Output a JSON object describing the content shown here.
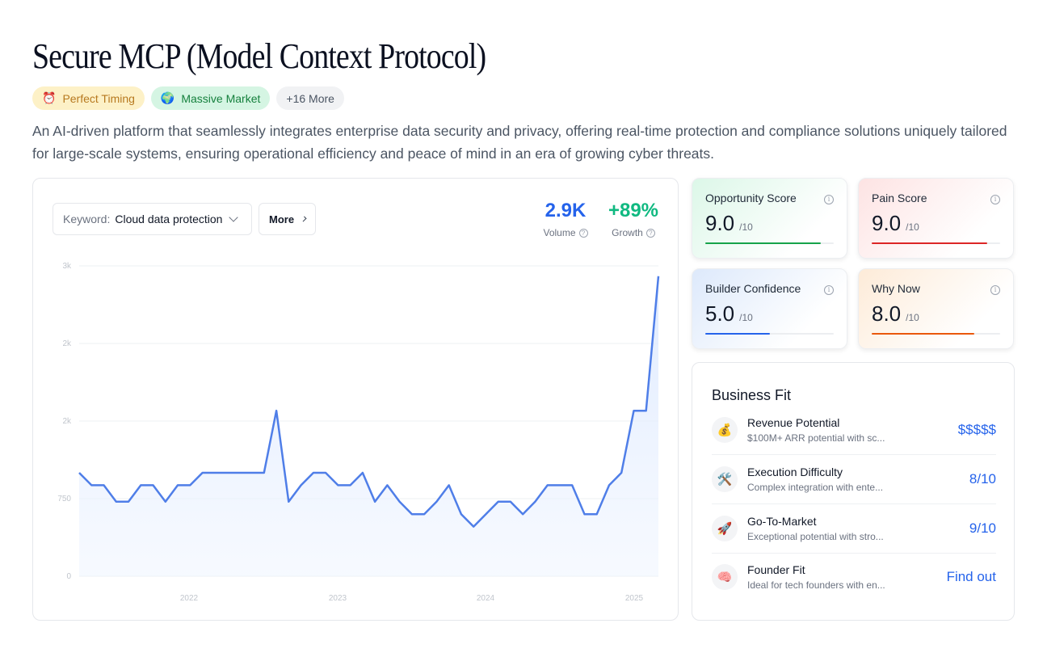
{
  "title": "Secure MCP (Model Context Protocol)",
  "tags": [
    {
      "emoji": "⏰",
      "label": "Perfect Timing"
    },
    {
      "emoji": "🌍",
      "label": "Massive Market"
    },
    {
      "label": "+16 More"
    }
  ],
  "description": "An AI-driven platform that seamlessly integrates enterprise data security and privacy, offering real-time protection and compliance solutions uniquely tailored for large-scale systems, ensuring operational efficiency and peace of mind in an era of growing cyber threats.",
  "keyword": {
    "label": "Keyword:",
    "value": "Cloud data protection"
  },
  "more_button": "More",
  "stats": {
    "volume": {
      "value": "2.9K",
      "label": "Volume"
    },
    "growth": {
      "value": "+89%",
      "label": "Growth"
    }
  },
  "colors": {
    "line": "#4f7ee8",
    "area": "#e6efff",
    "volume": "#2563eb",
    "growth": "#10b981"
  },
  "chart_data": {
    "type": "area",
    "y_tick_labels": [
      "3k",
      "2k",
      "2k",
      "750",
      "0"
    ],
    "x_tick_labels": [
      "2022",
      "2023",
      "2024",
      "2025"
    ],
    "ylim": [
      0,
      3000
    ],
    "grid": true,
    "series": [
      {
        "values": [
          1000,
          880,
          880,
          720,
          720,
          880,
          880,
          720,
          880,
          880,
          1000,
          1000,
          1000,
          1000,
          1000,
          1000,
          1600,
          720,
          880,
          1000,
          1000,
          880,
          880,
          1000,
          720,
          880,
          720,
          600,
          600,
          720,
          880,
          600,
          480,
          600,
          720,
          720,
          600,
          720,
          880,
          880,
          880,
          600,
          600,
          880,
          1000,
          1600,
          1600,
          2900
        ]
      }
    ]
  },
  "scores": [
    {
      "title": "Opportunity Score",
      "value": "9.0",
      "max": "/10",
      "fraction": 0.9,
      "color": "#16a34a"
    },
    {
      "title": "Pain Score",
      "value": "9.0",
      "max": "/10",
      "fraction": 0.9,
      "color": "#dc2626"
    },
    {
      "title": "Builder Confidence",
      "value": "5.0",
      "max": "/10",
      "fraction": 0.5,
      "color": "#2563eb"
    },
    {
      "title": "Why Now",
      "value": "8.0",
      "max": "/10",
      "fraction": 0.8,
      "color": "#ea580c"
    }
  ],
  "business_fit": {
    "title": "Business Fit",
    "rows": [
      {
        "icon": "money-bag-icon",
        "emoji": "💰",
        "name": "Revenue Potential",
        "sub": "$100M+ ARR potential with sc...",
        "value": "$$$$$"
      },
      {
        "icon": "tools-icon",
        "emoji": "🛠️",
        "name": "Execution Difficulty",
        "sub": "Complex integration with ente...",
        "value": "8/10"
      },
      {
        "icon": "rocket-icon",
        "emoji": "🚀",
        "name": "Go-To-Market",
        "sub": "Exceptional potential with stro...",
        "value": "9/10"
      },
      {
        "icon": "brain-icon",
        "emoji": "🧠",
        "name": "Founder Fit",
        "sub": "Ideal for tech founders with en...",
        "value": "Find out"
      }
    ]
  }
}
